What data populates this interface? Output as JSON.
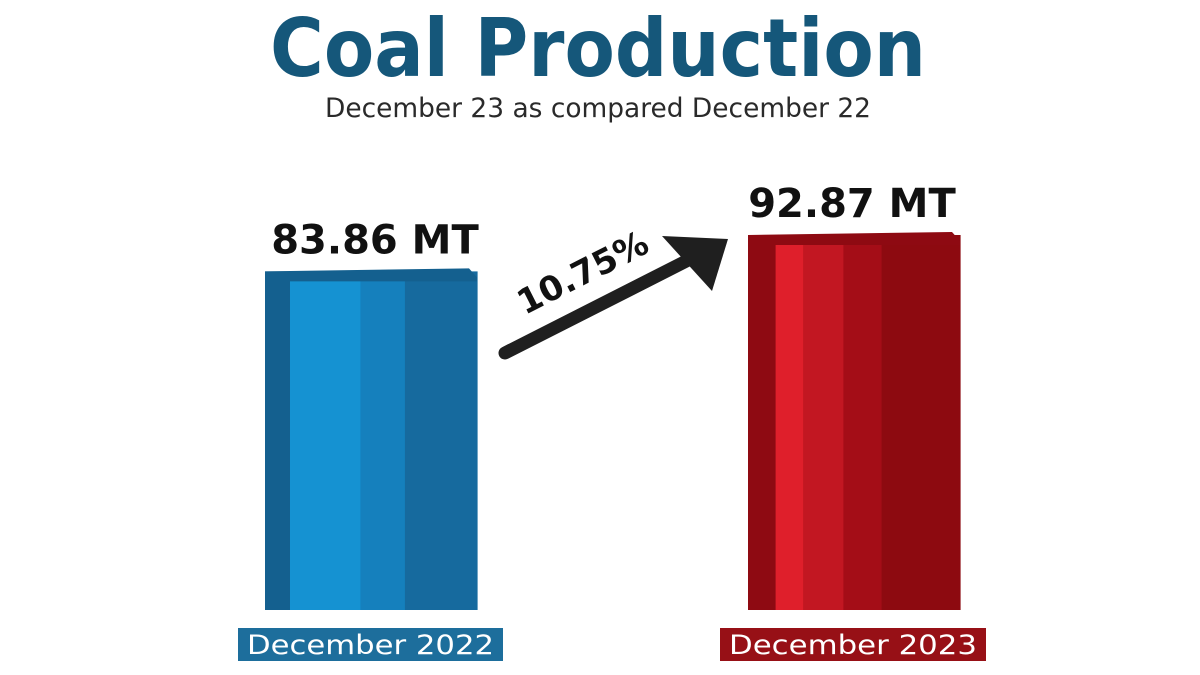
{
  "chart_data": {
    "type": "bar",
    "title": "Coal Production",
    "subtitle": "December 23 as compared December 22",
    "categories": [
      "December 2022",
      "December 2023"
    ],
    "values": [
      83.86,
      92.87
    ],
    "value_labels": [
      "83.86 MT",
      "92.87 MT"
    ],
    "unit": "MT",
    "growth_label": "10.75%",
    "xlabel": "",
    "ylabel": "",
    "grid": false,
    "legend": "none"
  },
  "colors": {
    "title": "#15577a",
    "subtitle": "#2a2a2a",
    "value_label": "#111111",
    "arrow": "#1f1f1f",
    "bar_2022": [
      "#14608f",
      "#1592d2",
      "#1580bd",
      "#166a9e"
    ],
    "bar_2023": [
      "#8e0a12",
      "#df1f2b",
      "#c21722",
      "#a40d17",
      "#8d0a10"
    ],
    "label_bg_2022": "#1d6e9c",
    "label_bg_2023": "#971016",
    "label_text": "#ffffff"
  }
}
